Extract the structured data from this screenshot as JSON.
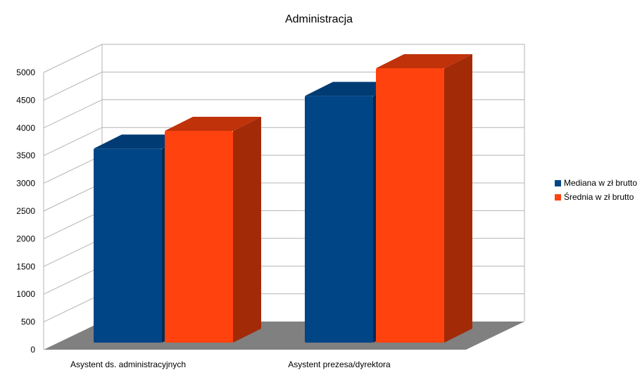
{
  "chart_data": {
    "type": "bar",
    "title": "Administracja",
    "categories": [
      "Asystent ds. administracyjnych",
      "Asystent prezesa/dyrektora"
    ],
    "series": [
      {
        "name": "Mediana w zł brutto",
        "values": [
          3500,
          4450
        ],
        "color": "#004586",
        "side_color": "#002B53",
        "top_color": "#003B73"
      },
      {
        "name": "Średnia w zł brutto",
        "values": [
          3820,
          4950
        ],
        "color": "#FF420E",
        "side_color": "#A32A07",
        "top_color": "#BF320A"
      }
    ],
    "ylim": [
      0,
      5000
    ],
    "yticks": [
      "0",
      "500",
      "1000",
      "1500",
      "2000",
      "2500",
      "3000",
      "3500",
      "4000",
      "4500",
      "5000"
    ],
    "grid": true,
    "legend_position": "right",
    "floor_color": "#808080"
  }
}
